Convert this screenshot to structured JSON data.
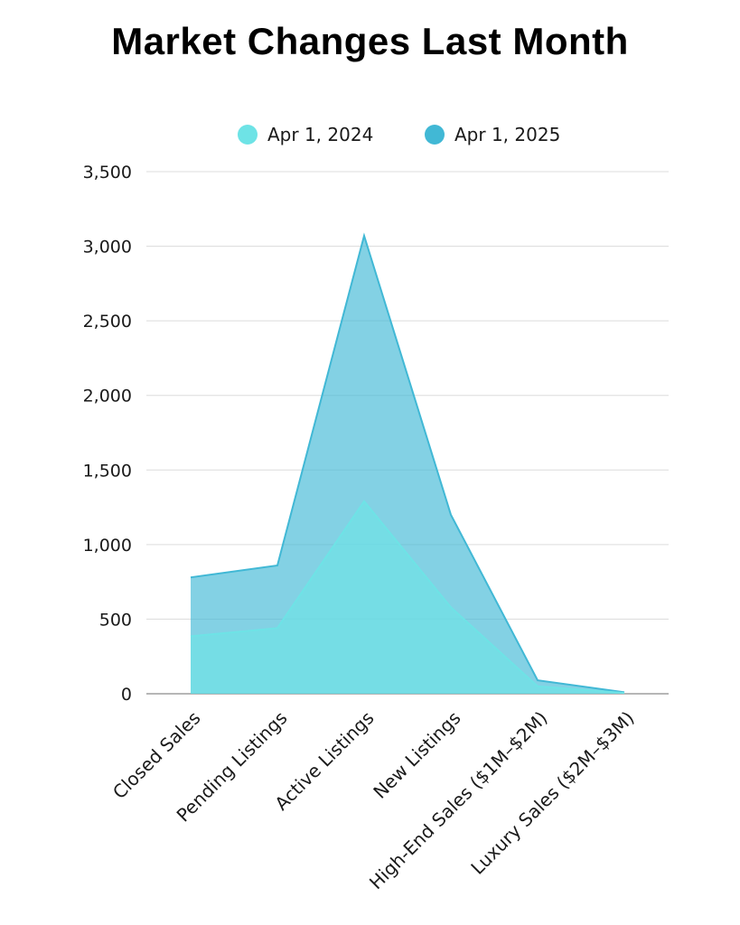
{
  "chart_data": {
    "type": "area",
    "title": "Market Changes Last Month",
    "xlabel": "",
    "ylabel": "",
    "categories": [
      "Closed Sales",
      "Pending Listings",
      "Active Listings",
      "New Listings",
      "High-End Sales ($1M–$2M)",
      "Luxury Sales ($2M–$3M)"
    ],
    "series": [
      {
        "name": "Apr 1, 2024",
        "values": [
          385,
          440,
          1290,
          580,
          50,
          5
        ],
        "color": "#6ee3e6"
      },
      {
        "name": "Apr 1, 2025",
        "values": [
          780,
          860,
          3070,
          1200,
          90,
          10
        ],
        "color": "#41b8d5"
      }
    ],
    "y_ticks": [
      0,
      500,
      1000,
      1500,
      2000,
      2500,
      3000,
      3500
    ],
    "y_tick_labels": [
      "0",
      "500",
      "1,000",
      "1,500",
      "2,000",
      "2,500",
      "3,000",
      "3,500"
    ],
    "ylim": [
      0,
      3500
    ],
    "grid": true,
    "legend_position": "top-center",
    "stacked": false
  }
}
